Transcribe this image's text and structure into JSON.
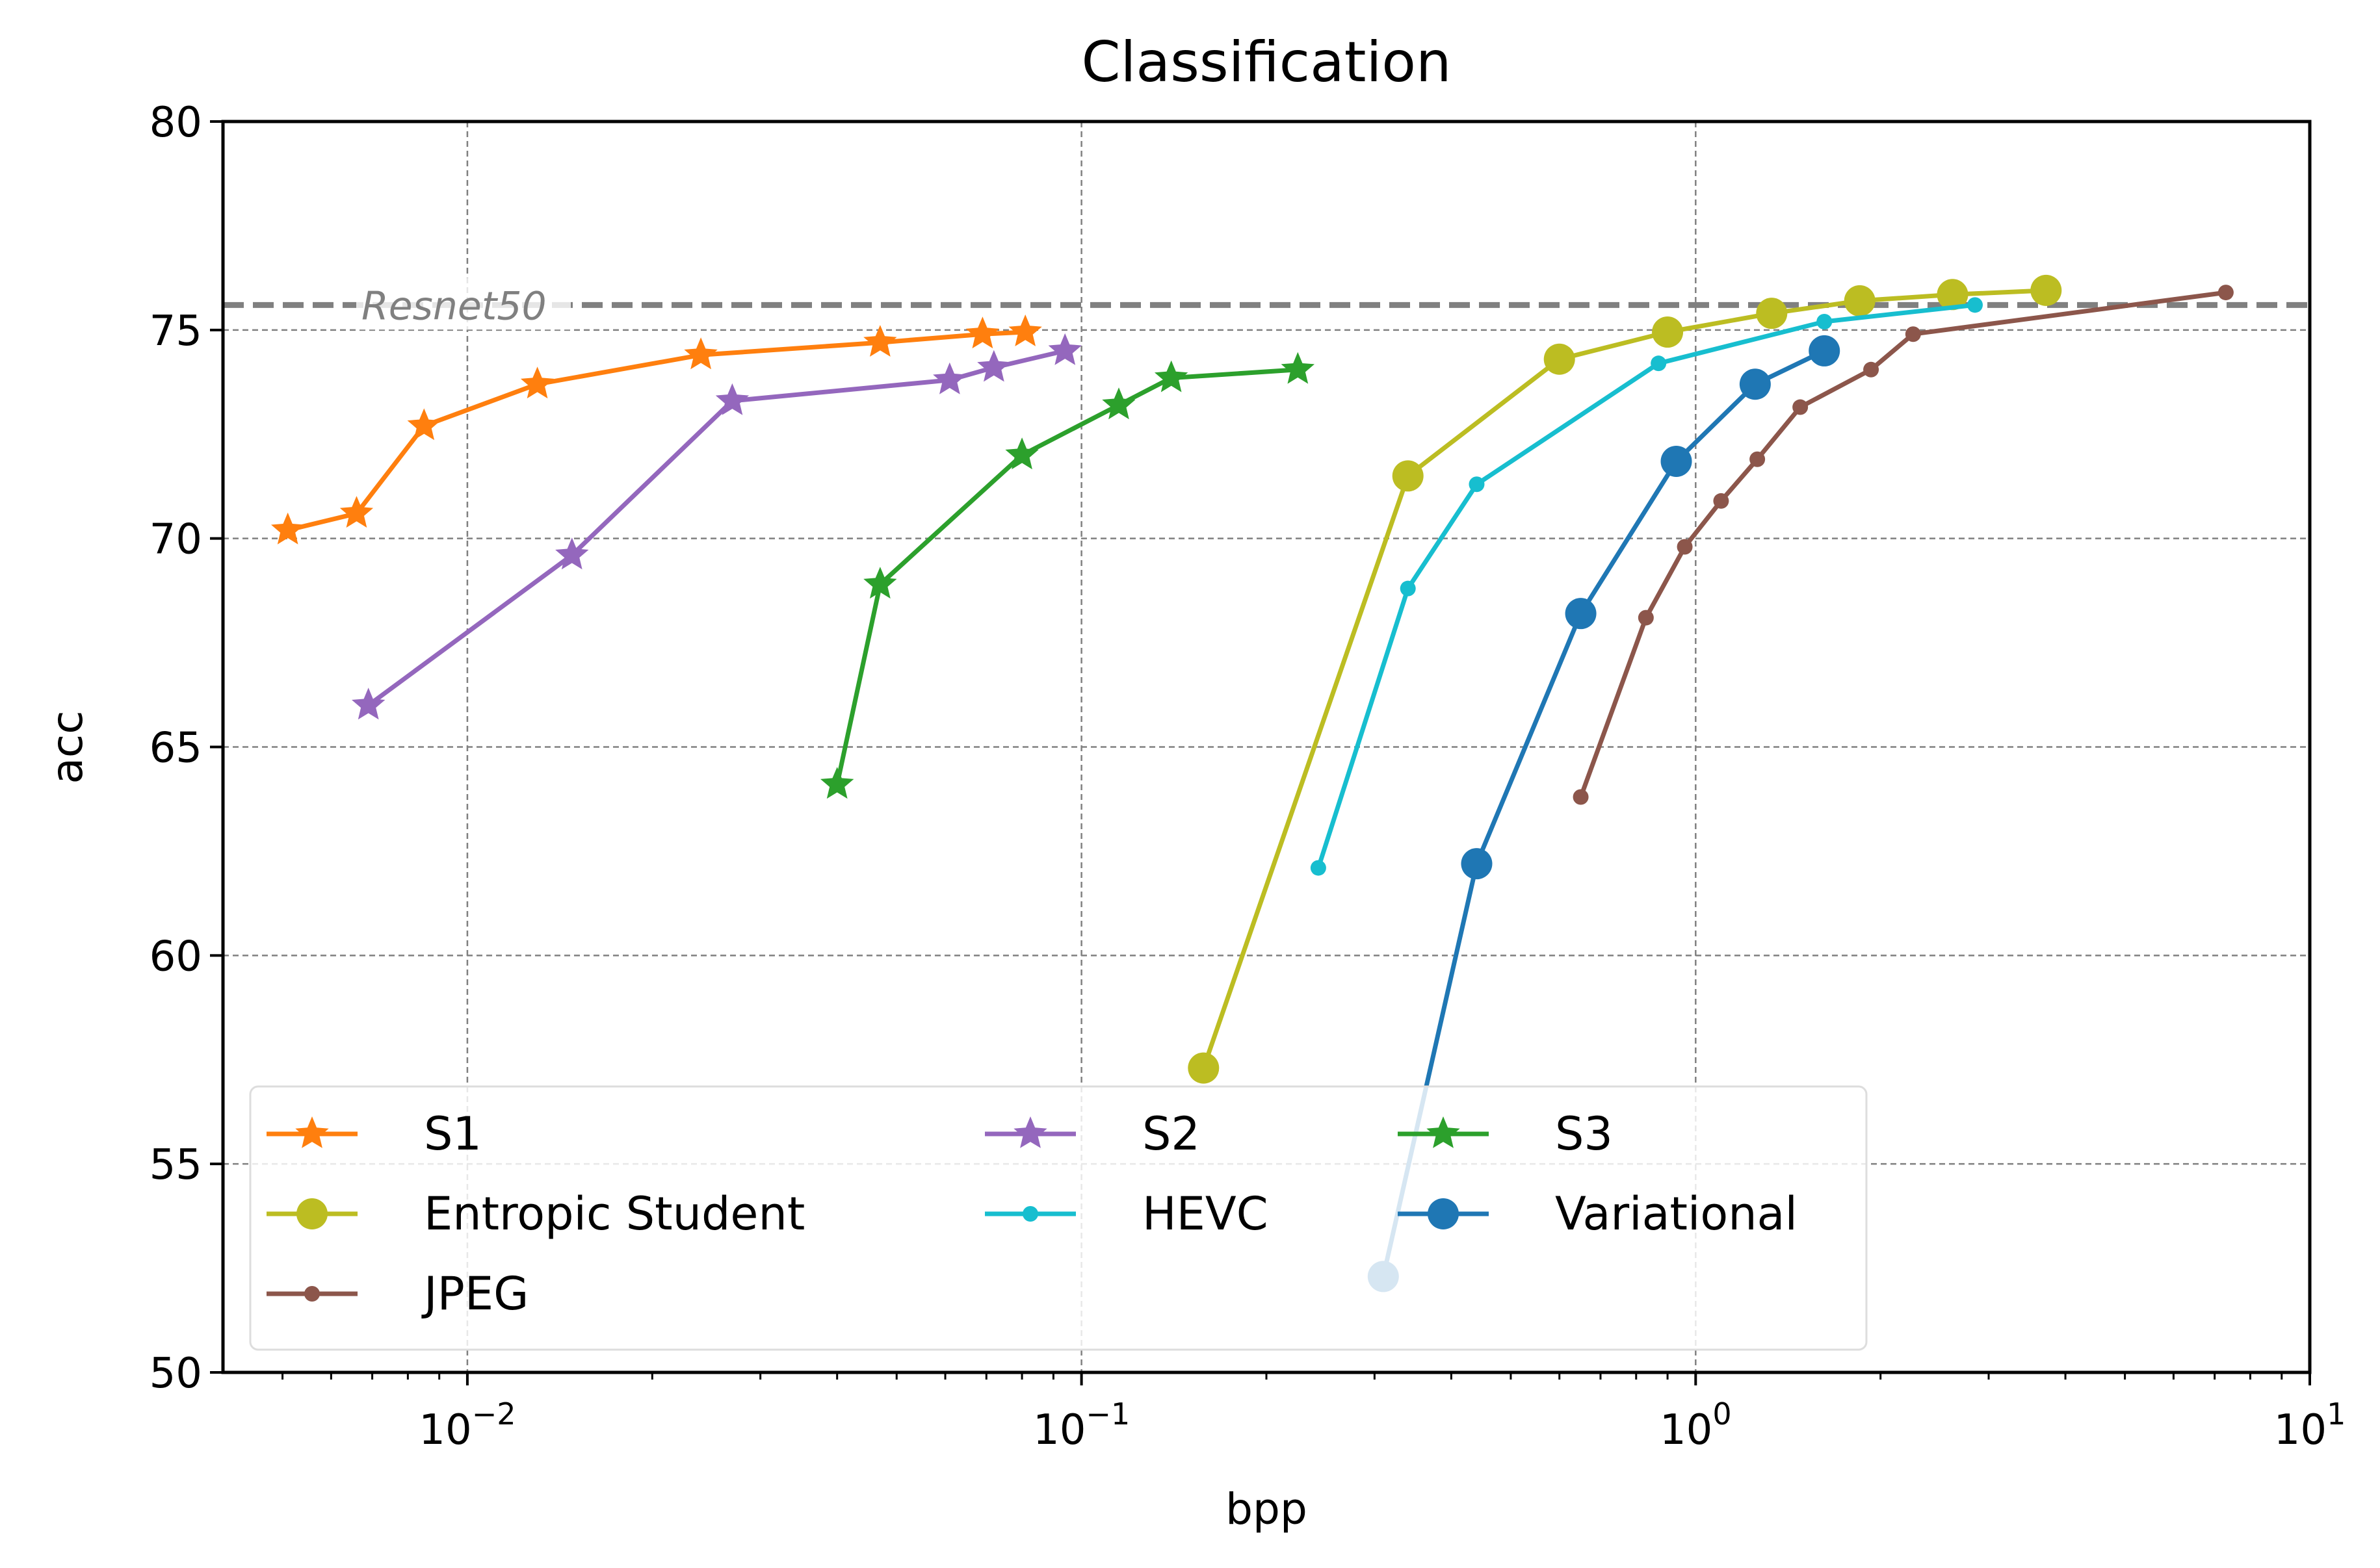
{
  "chart_data": {
    "type": "line",
    "title": "Classification",
    "xlabel": "bpp",
    "ylabel": "acc",
    "xscale": "log",
    "xlim": [
      0.004,
      10
    ],
    "ylim": [
      50,
      80
    ],
    "x_ticks": [
      {
        "value": 0.01,
        "base": "10",
        "exp": "−2"
      },
      {
        "value": 0.1,
        "base": "10",
        "exp": "−1"
      },
      {
        "value": 1,
        "base": "10",
        "exp": "0"
      },
      {
        "value": 10,
        "base": "10",
        "exp": "1"
      }
    ],
    "y_ticks": [
      50,
      55,
      60,
      65,
      70,
      75,
      80
    ],
    "grid": true,
    "reference_line": {
      "label": "Resnet50",
      "value": 75.6,
      "color": "#808080"
    },
    "legend_position": "lower-left",
    "series": [
      {
        "name": "S1",
        "color": "#ff7f0e",
        "marker": "star",
        "x": [
          0.0051,
          0.0066,
          0.0085,
          0.013,
          0.024,
          0.047,
          0.069,
          0.081
        ],
        "y": [
          70.2,
          70.6,
          72.7,
          73.7,
          74.4,
          74.7,
          74.9,
          74.95
        ]
      },
      {
        "name": "S2",
        "color": "#9467bd",
        "marker": "star",
        "x": [
          0.0069,
          0.0148,
          0.027,
          0.061,
          0.072,
          0.094
        ],
        "y": [
          66.0,
          69.6,
          73.3,
          73.8,
          74.1,
          74.5
        ]
      },
      {
        "name": "S3",
        "color": "#2ca02c",
        "marker": "star",
        "x": [
          0.04,
          0.047,
          0.08,
          0.115,
          0.14,
          0.225
        ],
        "y": [
          64.1,
          68.9,
          72.0,
          73.2,
          73.85,
          74.05
        ]
      },
      {
        "name": "Entropic Student",
        "color": "#bcbd22",
        "marker": "bigcircle",
        "x": [
          0.158,
          0.34,
          0.6,
          0.9,
          1.33,
          1.85,
          2.62,
          3.72
        ],
        "y": [
          57.3,
          71.5,
          74.3,
          74.95,
          75.4,
          75.7,
          75.85,
          75.95
        ]
      },
      {
        "name": "HEVC",
        "color": "#17becf",
        "marker": "smallcircle",
        "x": [
          0.243,
          0.34,
          0.44,
          0.87,
          1.62,
          2.85
        ],
        "y": [
          62.1,
          68.8,
          71.3,
          74.2,
          75.2,
          75.6
        ]
      },
      {
        "name": "Variational",
        "color": "#1f77b4",
        "marker": "bigcircle",
        "x": [
          0.31,
          0.44,
          0.65,
          0.93,
          1.25,
          1.62
        ],
        "y": [
          52.3,
          62.2,
          68.2,
          71.85,
          73.7,
          74.5
        ]
      },
      {
        "name": "JPEG",
        "color": "#8c564b",
        "marker": "smallcircle",
        "x": [
          0.65,
          0.83,
          0.96,
          1.1,
          1.26,
          1.48,
          1.93,
          2.26,
          7.3
        ],
        "y": [
          63.8,
          68.1,
          69.8,
          70.9,
          71.9,
          73.15,
          74.05,
          74.9,
          75.9
        ]
      }
    ],
    "legend": [
      [
        "S1",
        "S2",
        "S3"
      ],
      [
        "Entropic Student",
        "HEVC",
        "Variational"
      ],
      [
        "JPEG"
      ]
    ]
  }
}
